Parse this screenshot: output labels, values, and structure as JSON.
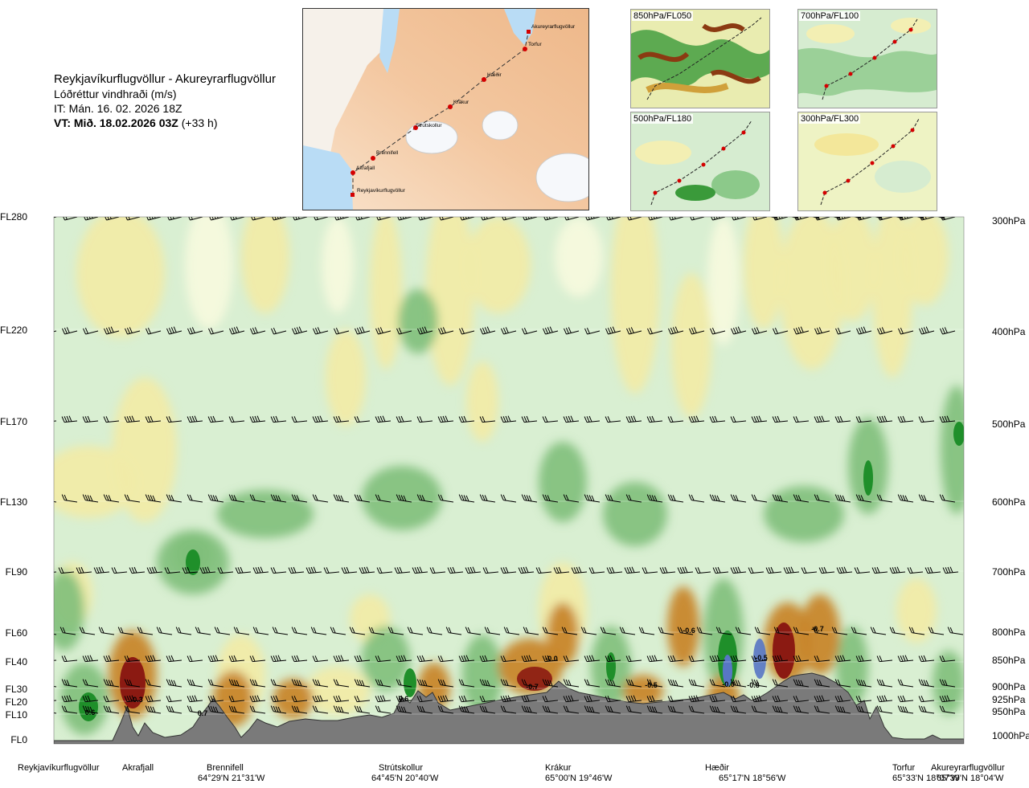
{
  "header": {
    "route": "Reykjavíkurflugvöllur - Akureyrarflugvöllur",
    "variable": "Lóðréttur vindhraði (m/s)",
    "it": "IT: Mán. 16. 02. 2026 18Z",
    "vt_bold": "VT: Mið. 18.02.2026 03Z",
    "vt_lead": " (+33 h)"
  },
  "map": {
    "waypoints": [
      "Akureyrarflugvöllur",
      "Torfur",
      "Hæðir",
      "Krákur",
      "Strútskollur",
      "Brennifell",
      "Akrafjall",
      "Reykjavíkurflugvöllur"
    ]
  },
  "mini_maps": [
    {
      "label": "850hPa/FL050"
    },
    {
      "label": "700hPa/FL100"
    },
    {
      "label": "500hPa/FL180"
    },
    {
      "label": "300hPa/FL300"
    }
  ],
  "chart_data": {
    "type": "heatmap",
    "title": "Lóðréttur vindhraði (m/s)",
    "y_left_labels": [
      "FL280",
      "FL220",
      "FL170",
      "FL130",
      "FL90",
      "FL60",
      "FL40",
      "FL30",
      "FL20",
      "FL10",
      "FL0"
    ],
    "y_right_labels": [
      "300hPa",
      "400hPa",
      "500hPa",
      "600hPa",
      "700hPa",
      "800hPa",
      "850hPa",
      "900hPa",
      "925hPa",
      "950hPa",
      "1000hPa"
    ],
    "locations": [
      {
        "name": "Reykjavíkurflugvöllur",
        "coord": ""
      },
      {
        "name": "Akrafjall",
        "coord": ""
      },
      {
        "name": "Brennifell",
        "coord": "64°29'N 21°31'W"
      },
      {
        "name": "Strútskollur",
        "coord": "64°45'N 20°40'W"
      },
      {
        "name": "Krákur",
        "coord": "65°00'N 19°46'W"
      },
      {
        "name": "Hæðir",
        "coord": "65°17'N 18°56'W"
      },
      {
        "name": "Torfur",
        "coord": "65°33'N 18°07'W"
      },
      {
        "name": "Akureyrarflugvöllur",
        "coord": "65°39'N 18°04'W"
      }
    ],
    "contour_labels": [
      "0.6",
      "-0.3",
      "0.7",
      "0.6",
      "-0.0",
      "-0.7",
      "-0.5",
      "-0.6",
      "-0.0",
      "-0.6",
      "-0.5",
      "-0.7"
    ],
    "colors": {
      "strong_up": "#8b1a12",
      "up": "#c8862a",
      "weak_up": "#f1eba8",
      "weak_down": "#cfeacc",
      "down": "#7fbf7a",
      "strong_down": "#1f8f2a",
      "extreme_down": "#5876c4",
      "terrain": "#7a7a7a"
    }
  }
}
